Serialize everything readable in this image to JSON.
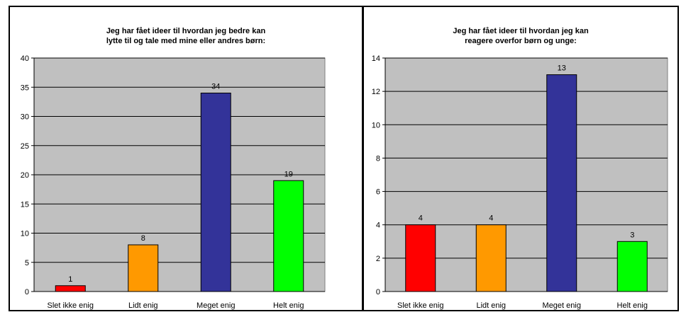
{
  "chart_data": [
    {
      "type": "bar",
      "title_lines": [
        "Jeg har fået ideer til hvordan jeg bedre kan",
        "lytte til og tale med mine eller andres børn:"
      ],
      "categories": [
        "Slet ikke enig",
        "Lidt enig",
        "Meget enig",
        "Helt enig"
      ],
      "values": [
        1,
        8,
        34,
        19
      ],
      "bar_colors": [
        "#ff0000",
        "#ff9900",
        "#333399",
        "#00ff00"
      ],
      "ylim": [
        0,
        40
      ],
      "yticks": [
        0,
        5,
        10,
        15,
        20,
        25,
        30,
        35,
        40
      ],
      "grid": true,
      "plot_background": "#c0c0c0",
      "xlabel": "",
      "ylabel": ""
    },
    {
      "type": "bar",
      "title_lines": [
        "Jeg har fået ideer til hvordan jeg kan",
        "reagere overfor børn og unge:"
      ],
      "categories": [
        "Slet ikke enig",
        "Lidt enig",
        "Meget enig",
        "Helt enig"
      ],
      "values": [
        4,
        4,
        13,
        3
      ],
      "bar_colors": [
        "#ff0000",
        "#ff9900",
        "#333399",
        "#00ff00"
      ],
      "ylim": [
        0,
        14
      ],
      "yticks": [
        0,
        2,
        4,
        6,
        8,
        10,
        12,
        14
      ],
      "grid": true,
      "plot_background": "#c0c0c0",
      "xlabel": "",
      "ylabel": ""
    }
  ]
}
